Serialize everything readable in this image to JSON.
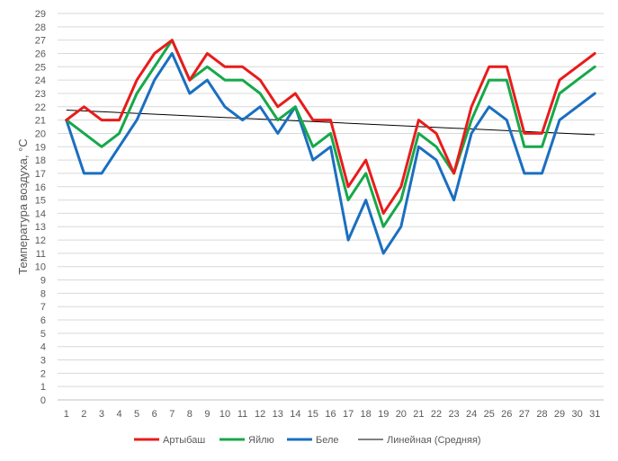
{
  "chart_data": {
    "type": "line",
    "ylabel": "Температура воздуха, °С",
    "ylim": [
      0,
      29
    ],
    "x": [
      1,
      2,
      3,
      4,
      5,
      6,
      7,
      8,
      9,
      10,
      11,
      12,
      13,
      14,
      15,
      16,
      17,
      18,
      19,
      20,
      21,
      22,
      23,
      24,
      25,
      26,
      27,
      28,
      29,
      30,
      31
    ],
    "series": [
      {
        "name": "Артыбаш",
        "color": "#e81c1c",
        "values": [
          21,
          22,
          21,
          21,
          24,
          26,
          27,
          24,
          26,
          25,
          25,
          24,
          22,
          23,
          21,
          21,
          16,
          18,
          14,
          16,
          21,
          20,
          17,
          22,
          25,
          25,
          20,
          20,
          24,
          25,
          26
        ]
      },
      {
        "name": "Яйлю",
        "color": "#16a84a",
        "values": [
          21,
          20,
          19,
          20,
          23,
          25,
          27,
          24,
          25,
          24,
          24,
          23,
          21,
          22,
          19,
          20,
          15,
          17,
          13,
          15,
          20,
          19,
          17,
          21,
          24,
          24,
          19,
          19,
          23,
          24,
          25
        ]
      },
      {
        "name": "Беле",
        "color": "#1b6fc0",
        "values": [
          21,
          17,
          17,
          19,
          21,
          24,
          26,
          23,
          24,
          22,
          21,
          22,
          20,
          22,
          18,
          19,
          12,
          15,
          11,
          13,
          19,
          18,
          15,
          20,
          22,
          21,
          17,
          17,
          21,
          22,
          23
        ]
      }
    ],
    "trendline": {
      "name": "Линейная (Средняя)",
      "color": "#000000",
      "start": 21.75,
      "end": 19.9
    },
    "grid": true,
    "legend_position": "bottom"
  }
}
